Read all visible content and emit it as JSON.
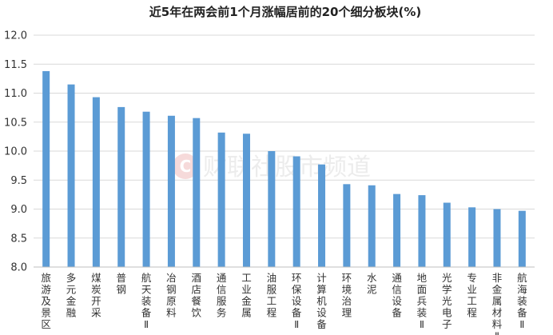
{
  "chart_data": {
    "type": "bar",
    "title": "近5年在两会前1个月涨幅居前的20个细分板块(%)",
    "xlabel": "",
    "ylabel": "",
    "ylim": [
      8.0,
      12.0
    ],
    "yticks": [
      "8.0",
      "8.5",
      "9.0",
      "9.5",
      "10.0",
      "10.5",
      "11.0",
      "11.5",
      "12.0"
    ],
    "grid": true,
    "color": "#5b9bd5",
    "categories": [
      "旅游及景区",
      "多元金融",
      "煤炭开采",
      "普钢",
      "航天装备Ⅱ",
      "冶钢原料",
      "酒店餐饮",
      "通信服务",
      "工业金属",
      "油服工程",
      "环保设备Ⅱ",
      "计算机设备",
      "环境治理",
      "水泥",
      "通信设备",
      "地面兵装Ⅱ",
      "光学光电子",
      "专业工程",
      "非金属材料Ⅱ",
      "航海装备Ⅱ"
    ],
    "values": [
      11.38,
      11.15,
      10.93,
      10.76,
      10.68,
      10.61,
      10.57,
      10.32,
      10.3,
      10.0,
      9.91,
      9.77,
      9.43,
      9.41,
      9.26,
      9.24,
      9.11,
      9.03,
      9.0,
      8.97
    ]
  },
  "watermark": {
    "text": "财联社股市频道",
    "icon": "cls-logo-icon"
  }
}
